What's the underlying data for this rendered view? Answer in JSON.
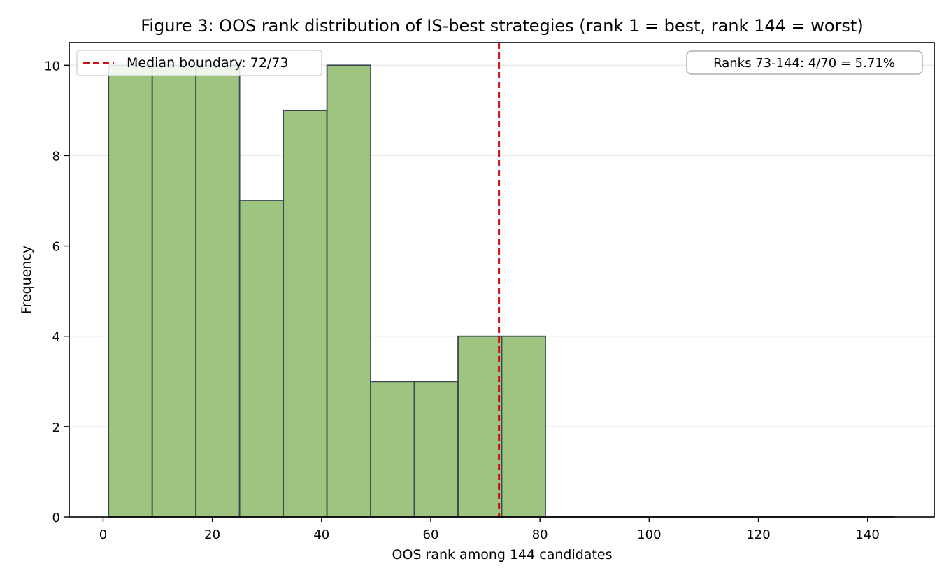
{
  "chart_data": {
    "type": "bar",
    "title": "Figure 3: OOS rank distribution of IS-best strategies (rank 1 = best, rank 144 = worst)",
    "xlabel": "OOS rank among 144 candidates",
    "ylabel": "Frequency",
    "bins": [
      {
        "start": 1,
        "end": 9,
        "value": 10
      },
      {
        "start": 9,
        "end": 17,
        "value": 10
      },
      {
        "start": 17,
        "end": 25,
        "value": 10
      },
      {
        "start": 25,
        "end": 33,
        "value": 7
      },
      {
        "start": 33,
        "end": 41,
        "value": 9
      },
      {
        "start": 41,
        "end": 49,
        "value": 10
      },
      {
        "start": 49,
        "end": 57,
        "value": 3
      },
      {
        "start": 57,
        "end": 65,
        "value": 3
      },
      {
        "start": 65,
        "end": 73,
        "value": 4
      },
      {
        "start": 73,
        "end": 81,
        "value": 4
      },
      {
        "start": 81,
        "end": 145,
        "value": 0
      }
    ],
    "xlim": [
      -6.2,
      152.2
    ],
    "ylim": [
      0,
      10.5
    ],
    "xticks": [
      0,
      20,
      40,
      60,
      80,
      100,
      120,
      140
    ],
    "yticks": [
      0,
      2,
      4,
      6,
      8,
      10
    ],
    "grid": "y",
    "reference_line": {
      "x": 72.5,
      "label": "Median boundary: 72/73",
      "color": "#cc1111",
      "style": "dashed"
    },
    "legend": {
      "placement": "top-left",
      "entries": [
        "Median boundary: 72/73"
      ]
    },
    "annotation": {
      "text": "Ranks 73-144: 4/70 = 5.71%",
      "placement": "top-right"
    },
    "colors": {
      "bar_fill": "#9dc57f",
      "bar_edge": "#3d4650",
      "grid": "#e8e8e8"
    }
  }
}
